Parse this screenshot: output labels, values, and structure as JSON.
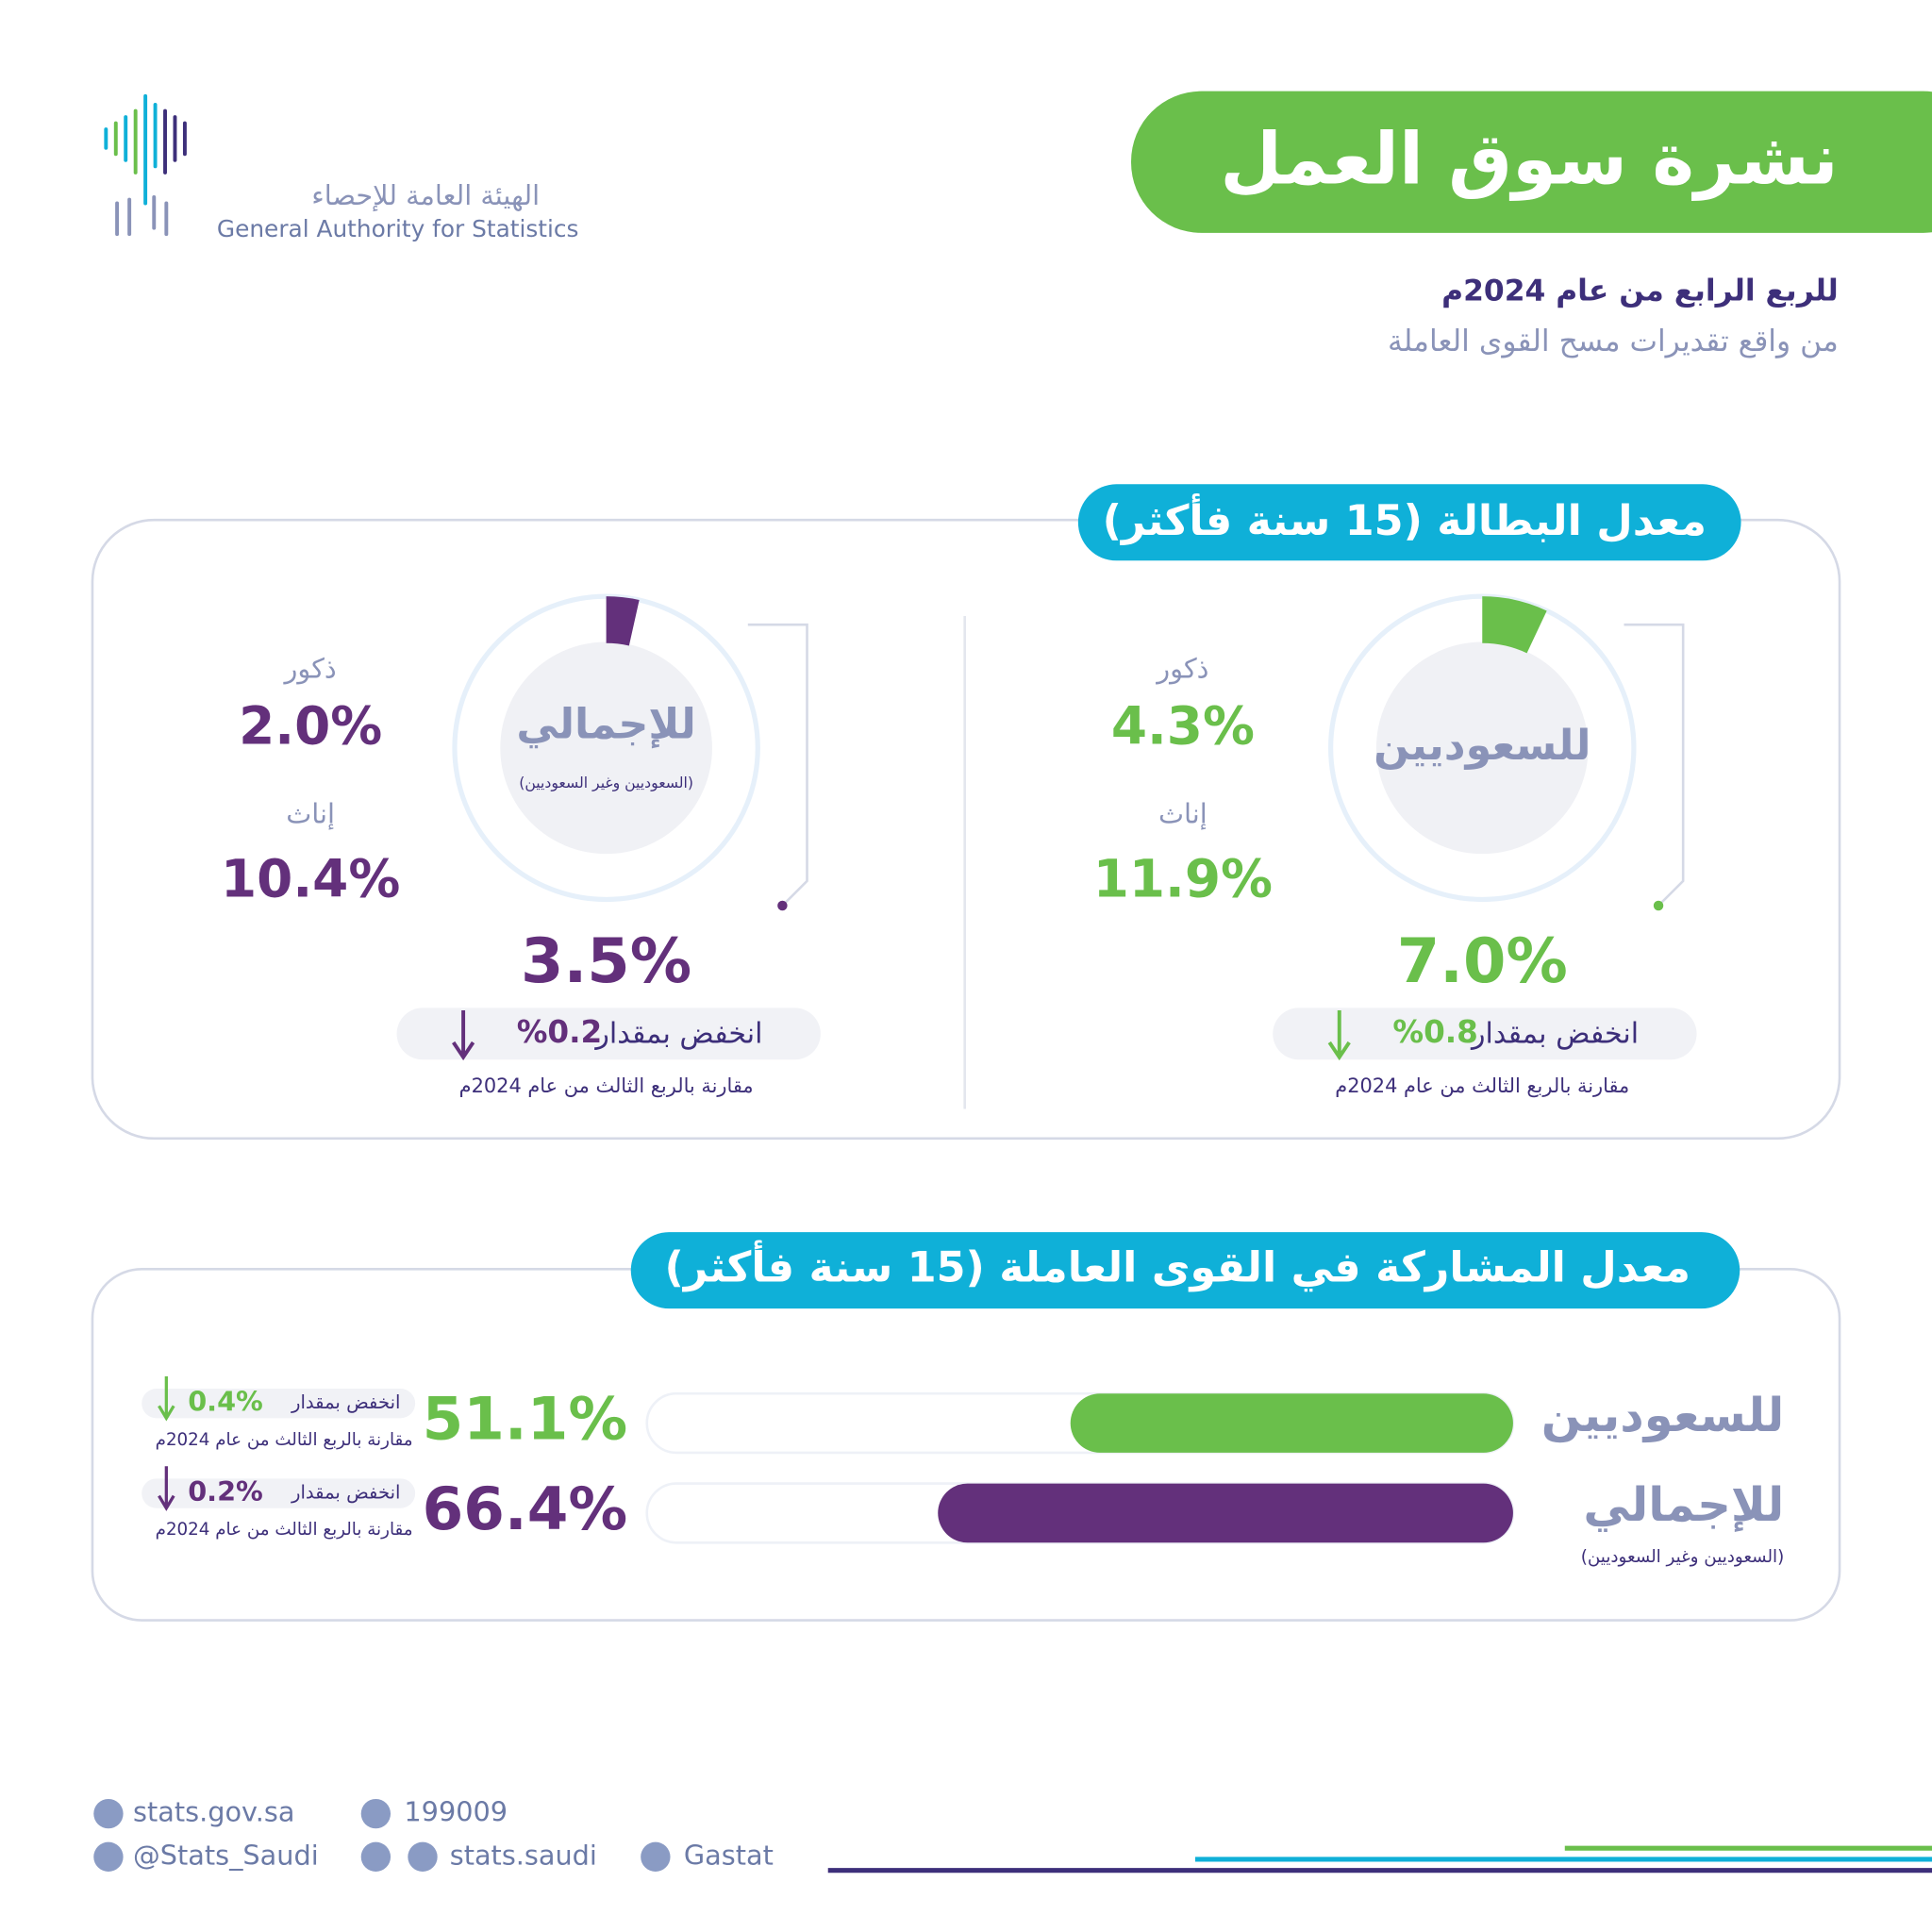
{
  "header": {
    "title": "نشرة سوق العمل",
    "period": "للربع الرابع من عام 2024م",
    "source": "من واقع تقديرات مسح القوى العاملة",
    "org_ar": "الهيئة العامة للإحصاء",
    "org_en": "General Authority for Statistics"
  },
  "unemployment": {
    "title": "معدل البطالة (15 سنة فأكثر)",
    "groups": [
      {
        "label": "للسعوديين",
        "value": 7,
        "value_label": "7.0%",
        "color": "#6abf4b",
        "males_label": "ذكور",
        "males": "4.3%",
        "females_label": "إناث",
        "females": "11.9%",
        "change_label": "انخفض بمقدار",
        "change": "%0.8",
        "comparison": "مقارنة بالربع الثالث من عام 2024م"
      },
      {
        "label": "للإجمالي",
        "sublabel": "(السعوديين وغير السعوديين)",
        "value": 3.5,
        "value_label": "3.5%",
        "color": "#63307b",
        "males_label": "ذكور",
        "males": "2.0%",
        "females_label": "إناث",
        "females": "10.4%",
        "change_label": "انخفض بمقدار",
        "change": "%0.2",
        "comparison": "مقارنة بالربع الثالث من عام 2024م"
      }
    ]
  },
  "participation": {
    "title": "معدل المشاركة في القوى العاملة (15 سنة فأكثر)",
    "rows": [
      {
        "label": "للسعوديين",
        "value": 51.1,
        "value_label": "51.1%",
        "color": "#6abf4b",
        "change_label": "انخفض بمقدار",
        "change": "0.4%",
        "comparison": "مقارنة بالربع الثالث من عام 2024م"
      },
      {
        "label": "للإجمالي",
        "sublabel": "(السعوديين وغير السعوديين)",
        "value": 66.4,
        "value_label": "66.4%",
        "color": "#63307b",
        "change_label": "انخفض بمقدار",
        "change": "0.2%",
        "comparison": "مقارنة بالربع الثالث من عام 2024م"
      }
    ]
  },
  "footer": {
    "website": "stats.gov.sa",
    "phone": "199009",
    "x": "@Stats_Saudi",
    "social": "stats.saudi",
    "linkedin": "Gastat"
  }
}
